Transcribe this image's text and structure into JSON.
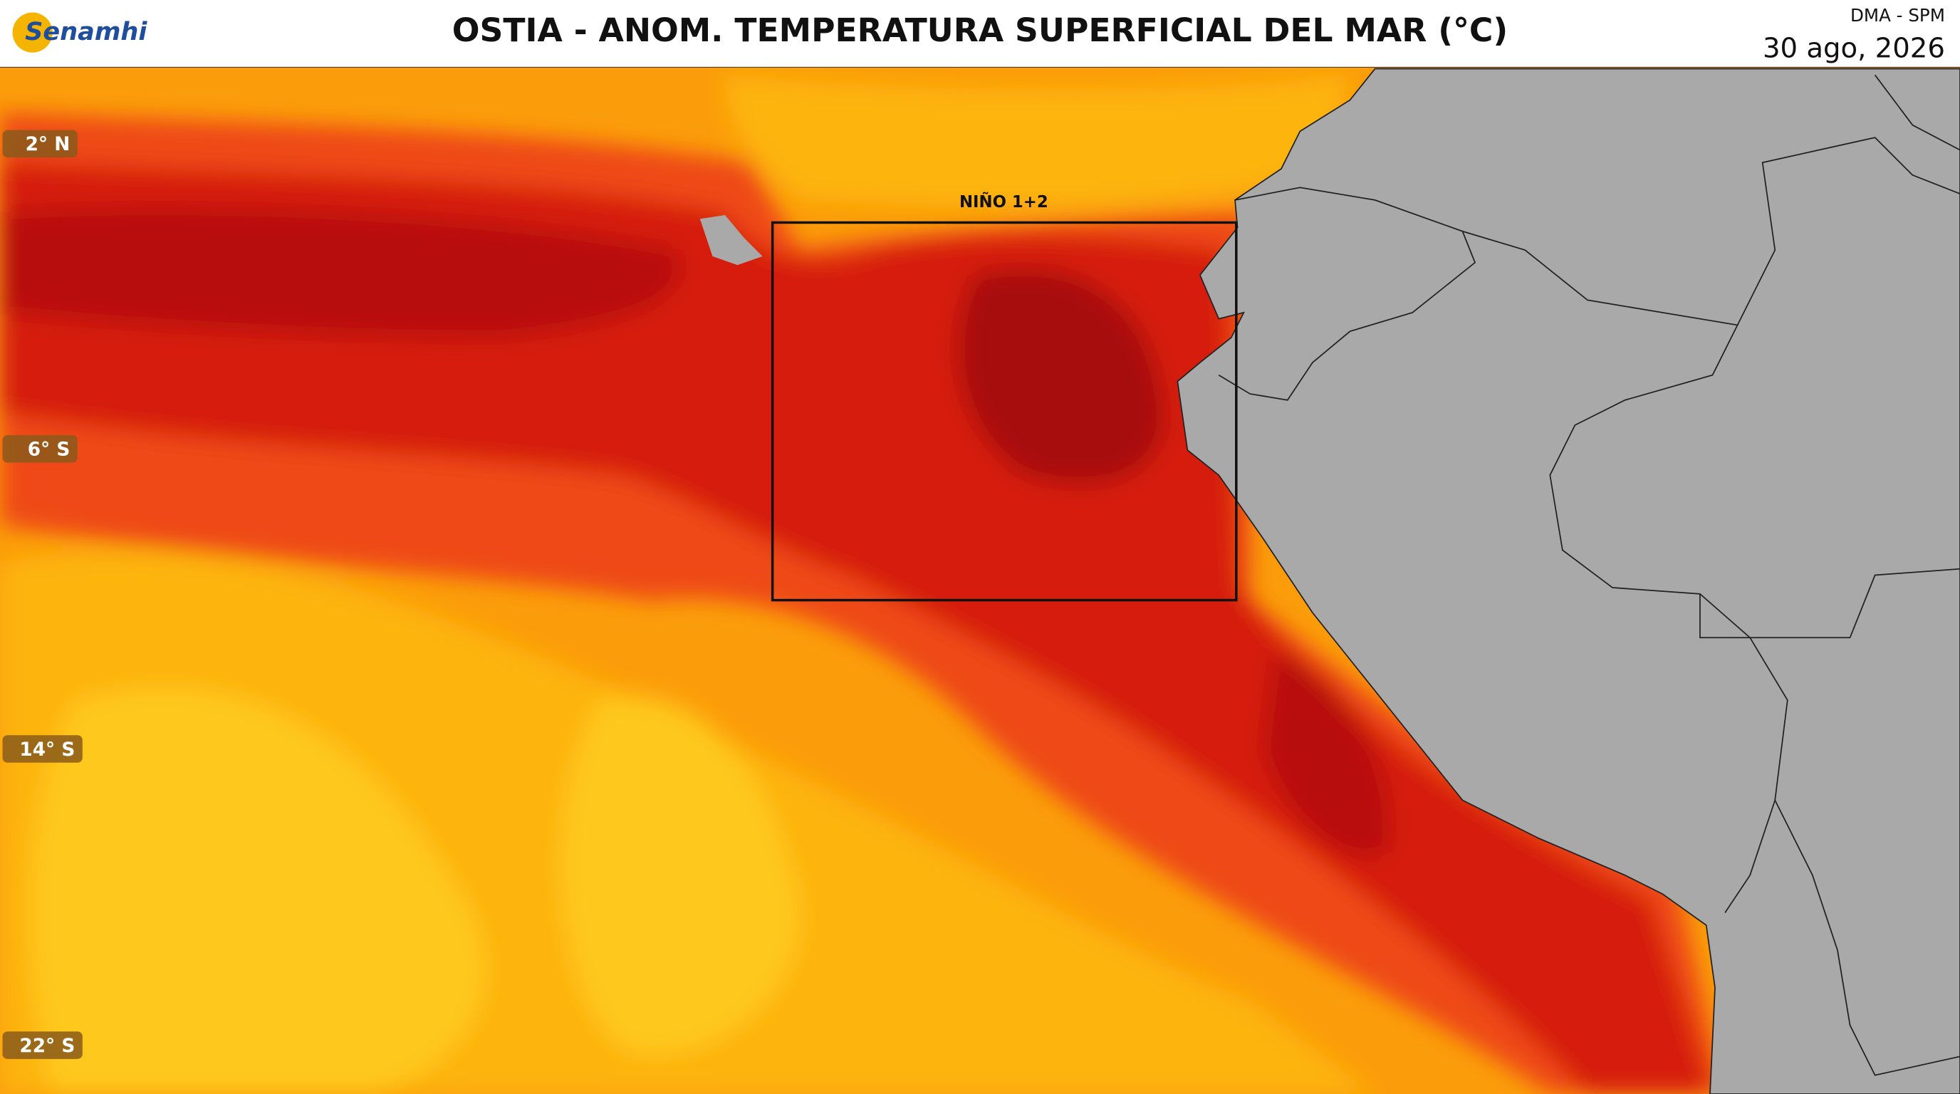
{
  "header": {
    "logo": "Senamhi",
    "title": "OSTIA - ANOM. TEMPERATURA SUPERFICIAL DEL MAR (°C)",
    "source": "DMA - SPM",
    "date": "30 ago, 2026"
  },
  "map": {
    "latitude_labels": [
      "2° N",
      "6° S",
      "14° S",
      "22° S"
    ],
    "region_label": "NIÑO 1+2"
  }
}
